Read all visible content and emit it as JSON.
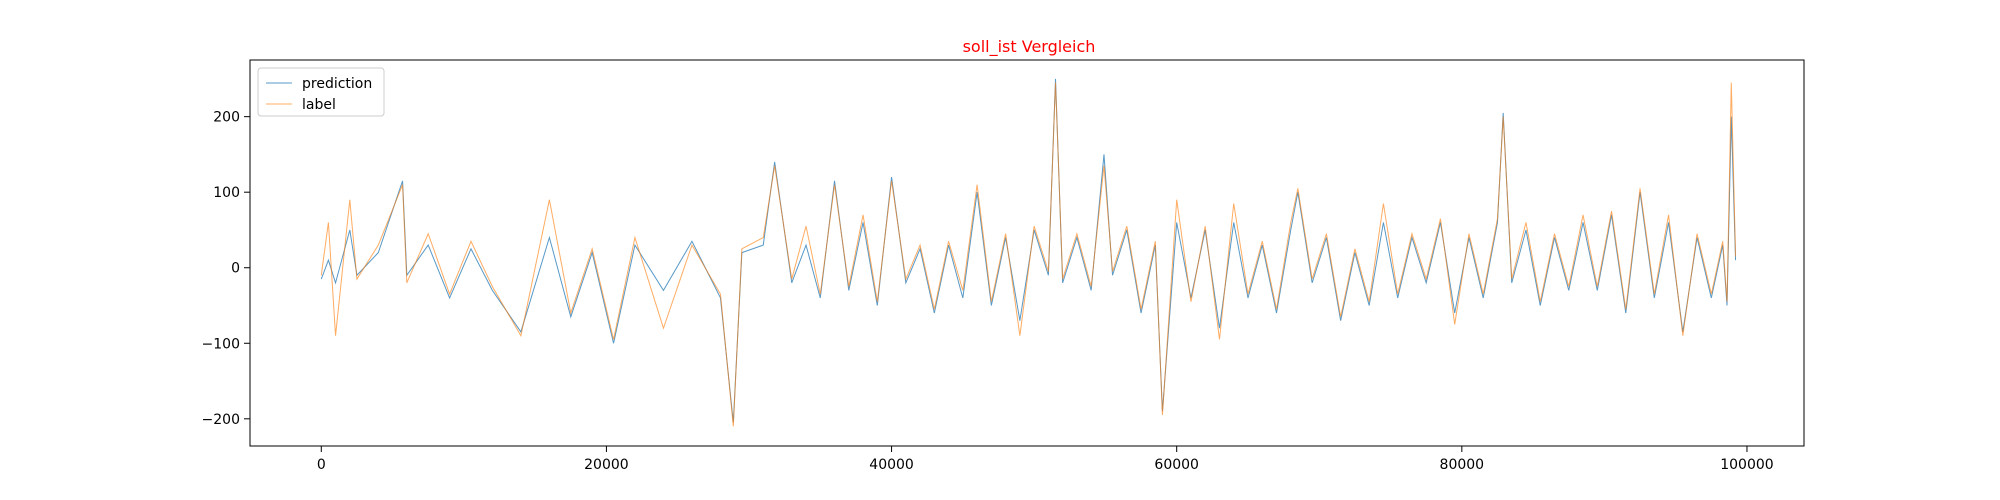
{
  "colors": {
    "title": "#ff0000",
    "prediction": "#1f77b4",
    "label": "#ff7f0e",
    "axis": "#000000",
    "background": "#ffffff"
  },
  "chart_data": {
    "type": "line",
    "title": "soll_ist Vergleich",
    "xlabel": "",
    "ylabel": "",
    "xlim": [
      -5000,
      104000
    ],
    "ylim": [
      -236,
      275
    ],
    "xticks": [
      0,
      20000,
      40000,
      60000,
      80000,
      100000
    ],
    "xtick_labels": [
      "0",
      "20000",
      "40000",
      "60000",
      "80000",
      "100000"
    ],
    "yticks": [
      -200,
      -100,
      0,
      100,
      200
    ],
    "ytick_labels": [
      "−200",
      "−100",
      "0",
      "100",
      "200"
    ],
    "grid": false,
    "legend_position": "upper-left",
    "series": [
      {
        "name": "prediction",
        "x": [
          0,
          500,
          1000,
          2000,
          2500,
          4000,
          5700,
          6000,
          7500,
          9000,
          10500,
          12000,
          14000,
          16000,
          17500,
          19000,
          20500,
          22000,
          24000,
          26000,
          28000,
          28900,
          29500,
          31000,
          31800,
          33000,
          34000,
          35000,
          36000,
          37000,
          38000,
          39000,
          40000,
          41000,
          42000,
          43000,
          44000,
          45000,
          46000,
          47000,
          48000,
          49000,
          50000,
          51000,
          51500,
          52000,
          53000,
          54000,
          54900,
          55500,
          56500,
          57500,
          58500,
          59000,
          60000,
          61000,
          62000,
          63000,
          64000,
          65000,
          66000,
          67000,
          68000,
          68500,
          69500,
          70500,
          71500,
          72500,
          73500,
          74500,
          75500,
          76500,
          77500,
          78500,
          79500,
          80500,
          81500,
          82500,
          82900,
          83500,
          84500,
          85500,
          86500,
          87500,
          88500,
          89500,
          90500,
          91500,
          92500,
          93500,
          94500,
          95500,
          96500,
          97500,
          98300,
          98600,
          98900,
          99200
        ],
        "y": [
          -15,
          10,
          -20,
          50,
          -10,
          20,
          115,
          -10,
          30,
          -40,
          25,
          -30,
          -85,
          40,
          -65,
          20,
          -100,
          30,
          -30,
          35,
          -40,
          -205,
          20,
          30,
          140,
          -20,
          30,
          -40,
          115,
          -30,
          60,
          -50,
          120,
          -20,
          25,
          -60,
          30,
          -40,
          100,
          -50,
          40,
          -70,
          50,
          -10,
          250,
          -20,
          40,
          -30,
          150,
          -10,
          50,
          -60,
          30,
          -190,
          60,
          -40,
          50,
          -80,
          60,
          -40,
          30,
          -60,
          50,
          100,
          -20,
          40,
          -70,
          20,
          -50,
          60,
          -40,
          40,
          -20,
          60,
          -60,
          40,
          -40,
          60,
          205,
          -20,
          50,
          -50,
          40,
          -30,
          60,
          -30,
          70,
          -60,
          100,
          -40,
          60,
          -85,
          40,
          -40,
          30,
          -50,
          200,
          10
        ],
        "linewidth": 1
      },
      {
        "name": "label",
        "x": [
          0,
          500,
          1000,
          2000,
          2500,
          4000,
          5700,
          6000,
          7500,
          9000,
          10500,
          12000,
          14000,
          16000,
          17500,
          19000,
          20500,
          22000,
          24000,
          26000,
          28000,
          28900,
          29500,
          31000,
          31800,
          33000,
          34000,
          35000,
          36000,
          37000,
          38000,
          39000,
          40000,
          41000,
          42000,
          43000,
          44000,
          45000,
          46000,
          47000,
          48000,
          49000,
          50000,
          51000,
          51500,
          52000,
          53000,
          54000,
          54900,
          55500,
          56500,
          57500,
          58500,
          59000,
          60000,
          61000,
          62000,
          63000,
          64000,
          65000,
          66000,
          67000,
          68000,
          68500,
          69500,
          70500,
          71500,
          72500,
          73500,
          74500,
          75500,
          76500,
          77500,
          78500,
          79500,
          80500,
          81500,
          82500,
          82900,
          83500,
          84500,
          85500,
          86500,
          87500,
          88500,
          89500,
          90500,
          91500,
          92500,
          93500,
          94500,
          95500,
          96500,
          97500,
          98300,
          98600,
          98900,
          99200
        ],
        "y": [
          -10,
          60,
          -90,
          90,
          -15,
          30,
          110,
          -20,
          45,
          -35,
          35,
          -25,
          -90,
          90,
          -60,
          25,
          -95,
          40,
          -80,
          30,
          -35,
          -210,
          25,
          40,
          135,
          -15,
          55,
          -35,
          110,
          -25,
          70,
          -45,
          115,
          -15,
          30,
          -55,
          35,
          -30,
          110,
          -45,
          45,
          -90,
          55,
          -5,
          245,
          -15,
          45,
          -25,
          135,
          -5,
          55,
          -55,
          35,
          -195,
          90,
          -45,
          55,
          -95,
          85,
          -35,
          35,
          -55,
          60,
          105,
          -15,
          45,
          -65,
          25,
          -45,
          85,
          -35,
          45,
          -15,
          65,
          -75,
          45,
          -35,
          65,
          200,
          -15,
          60,
          -45,
          45,
          -25,
          70,
          -25,
          75,
          -55,
          105,
          -35,
          70,
          -90,
          45,
          -35,
          35,
          -45,
          245,
          15
        ],
        "linewidth": 1
      }
    ]
  }
}
